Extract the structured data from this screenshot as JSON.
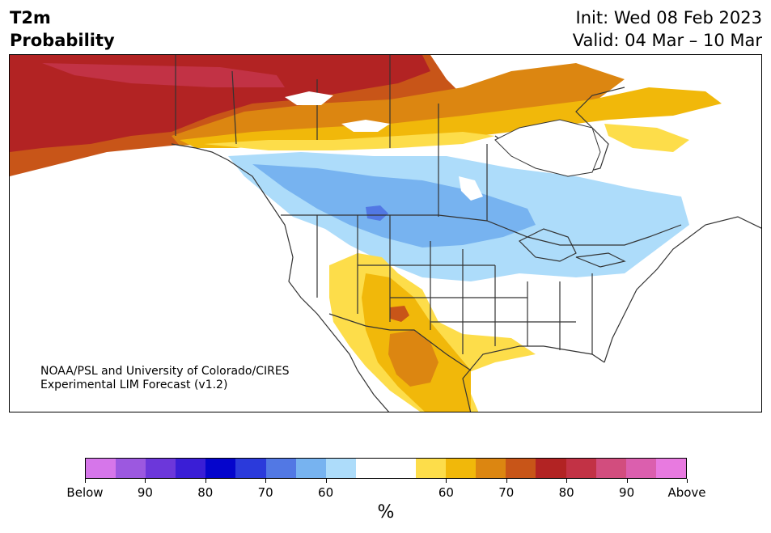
{
  "header": {
    "title_line1": "T2m",
    "title_line2": "Probability",
    "init": "Init: Wed 08 Feb 2023",
    "valid": "Valid: 04 Mar – 10 Mar"
  },
  "map": {
    "credit_line1": "NOAA/PSL and University of Colorado/CIRES",
    "credit_line2": "Experimental LIM Forecast (v1.2)",
    "colors": {
      "land": "#ffffff",
      "borders": "#333333",
      "below_60": "#addcfa",
      "below_70": "#77b3f0",
      "below_80": "#5278e4",
      "above_60": "#fddd4a",
      "above_70": "#f1b80a",
      "above_80": "#dc8611",
      "above_90": "#c85518",
      "above_dark": "#b22323",
      "above_rose": "#c23245"
    }
  },
  "colorbar": {
    "colors": [
      "#d676ea",
      "#9c58e0",
      "#6c37da",
      "#3a1ed6",
      "#0505cc",
      "#2b3adb",
      "#5278e4",
      "#77b3f0",
      "#addcfa",
      "#ffffff",
      "#ffffff",
      "#fddd4a",
      "#f1b80a",
      "#dc8611",
      "#c85518",
      "#b22323",
      "#c23245",
      "#d24d7e",
      "#db5fae",
      "#e87ae0"
    ],
    "tick_labels": [
      "Below",
      "90",
      "80",
      "70",
      "60",
      "60",
      "70",
      "80",
      "90",
      "Above"
    ],
    "unit": "%"
  }
}
